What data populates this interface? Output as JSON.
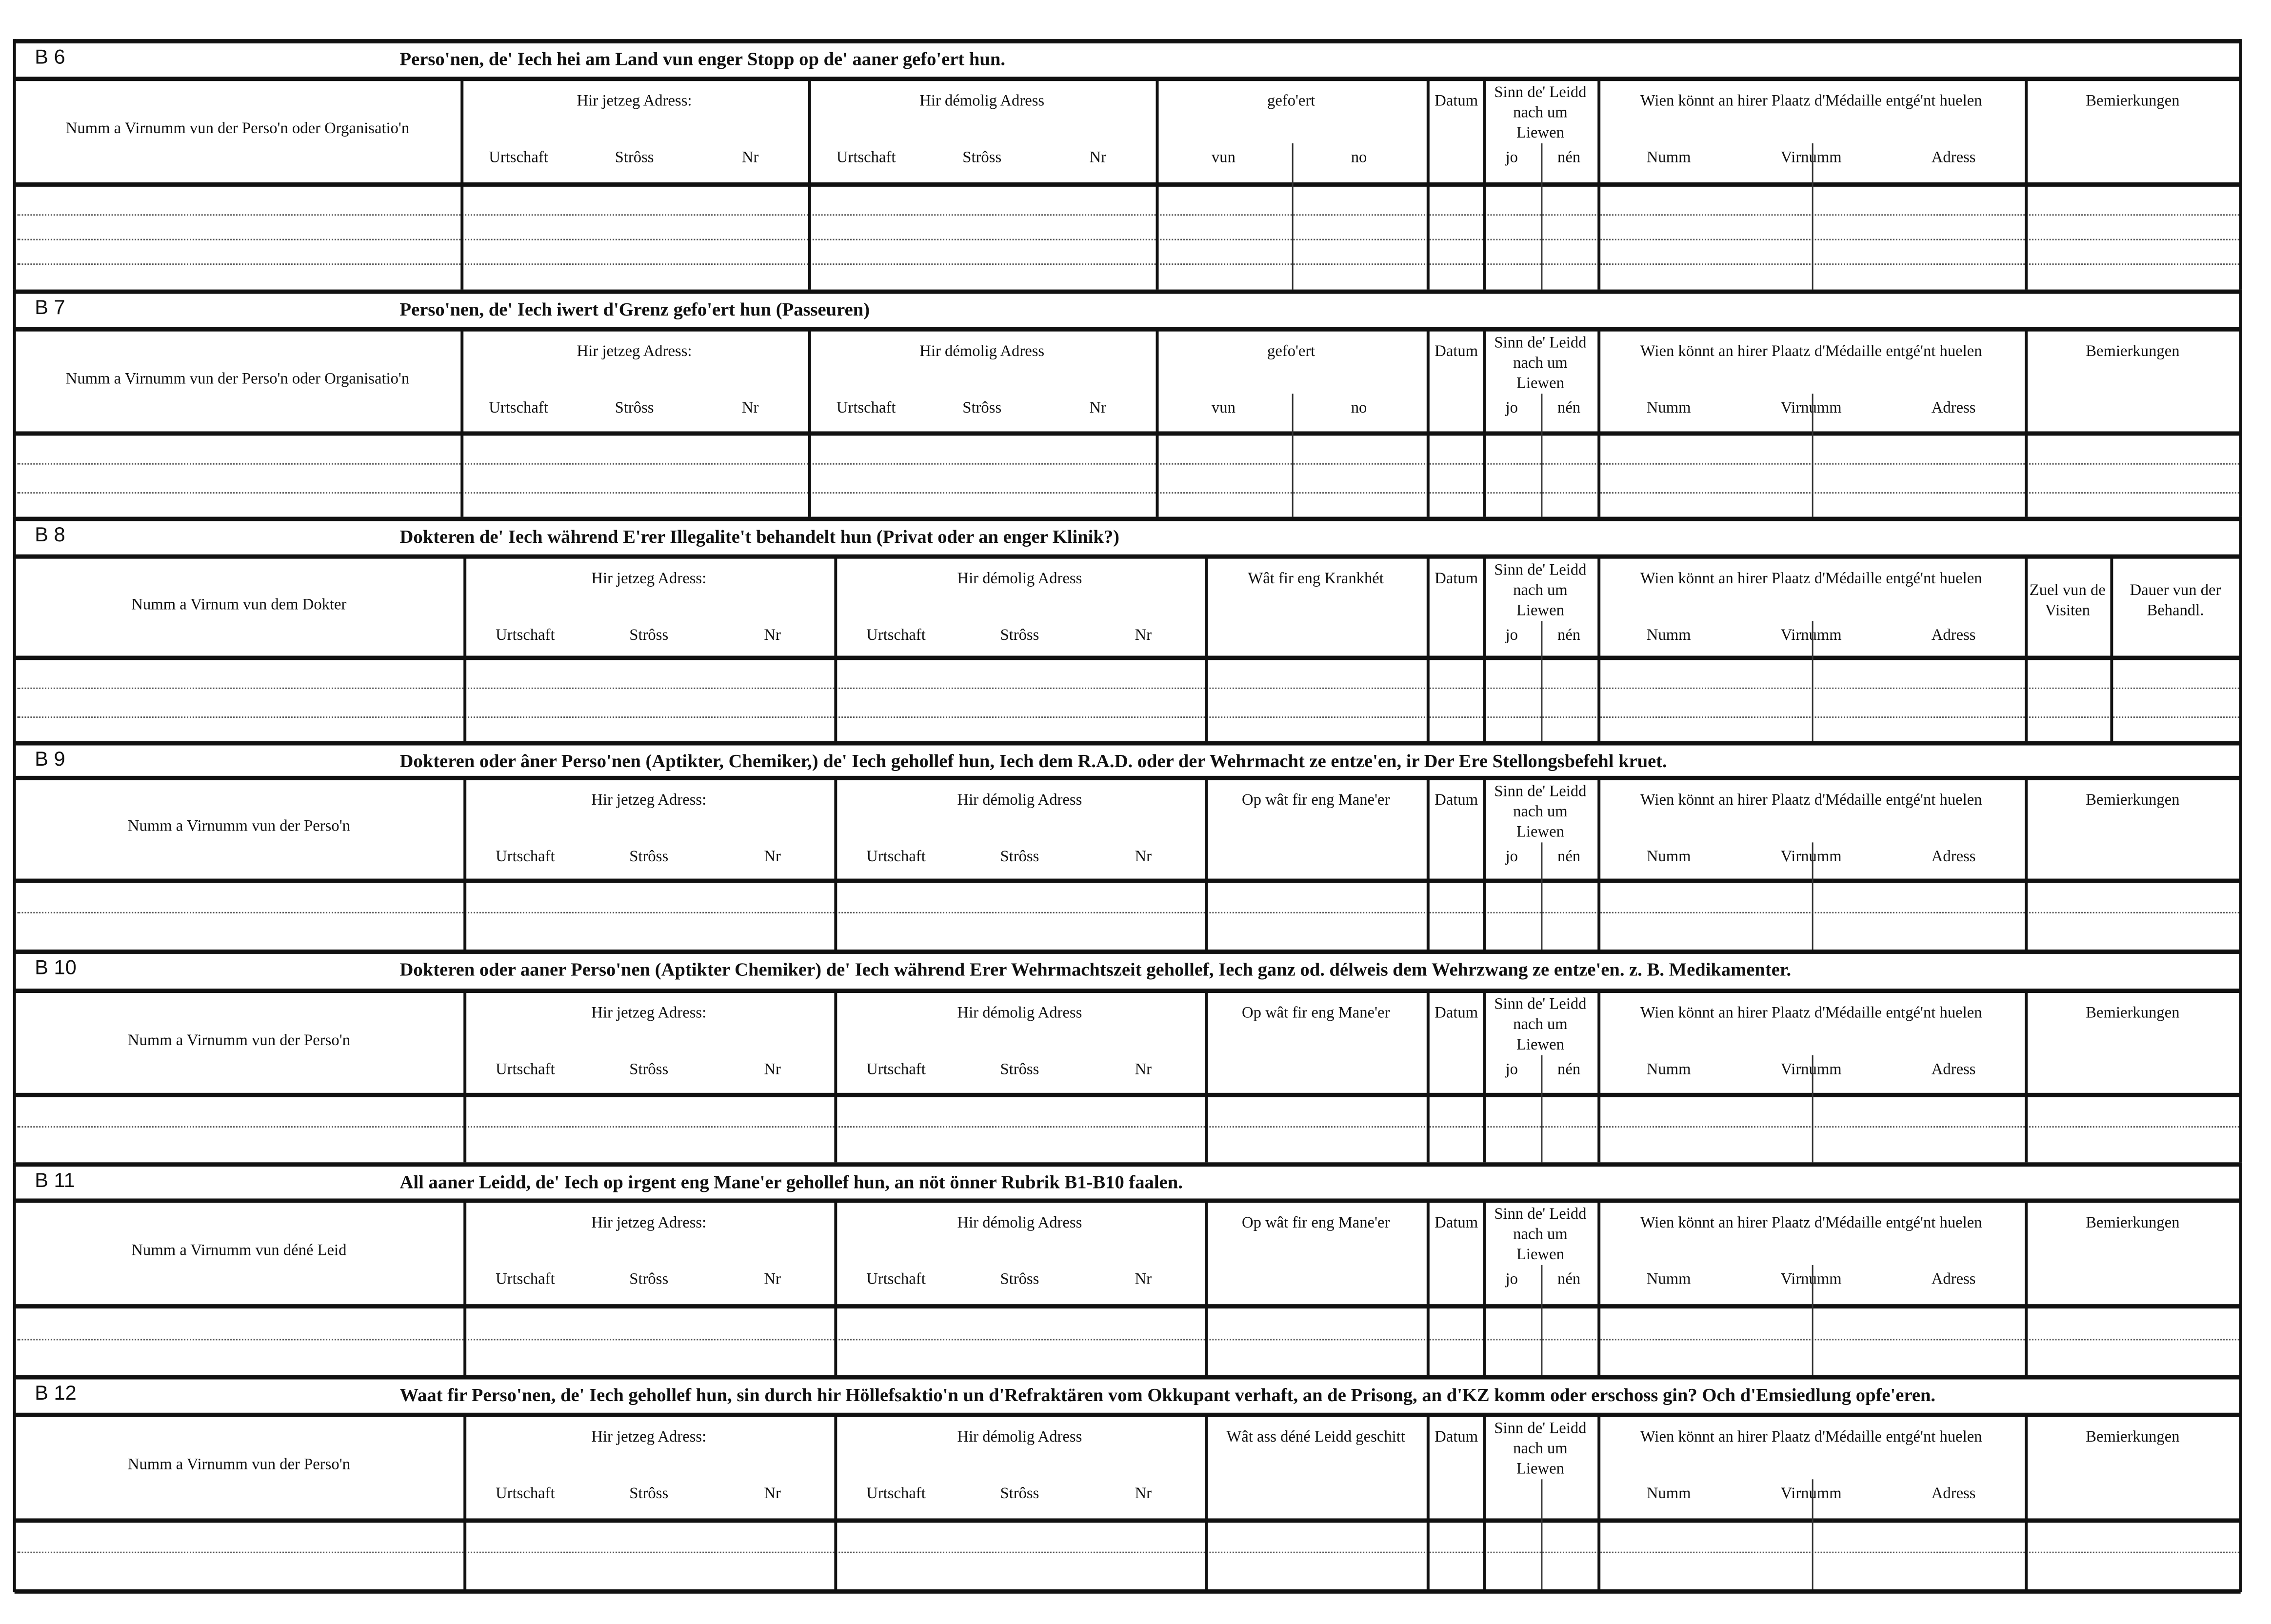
{
  "sections": [
    {
      "code": "B 6",
      "title": "Perso'nen, de' Iech hei am Land vun enger Stopp  op de' aaner gefo'ert hun.",
      "columns": [
        {
          "label": "Numm a Virnumm vun der Perso'n oder Organisatio'n"
        },
        {
          "label": "Hir jetzeg Adress:",
          "sub": [
            "Urtschaft",
            "Strôss",
            "Nr"
          ]
        },
        {
          "label": "Hir démolig Adress",
          "sub": [
            "Urtschaft",
            "Strôss",
            "Nr"
          ]
        },
        {
          "label": "gefo'ert",
          "sub": [
            "vun",
            "no"
          ]
        },
        {
          "label": "Datum"
        },
        {
          "label": "Sinn de' Leidd nach um Liewen",
          "sub": [
            "jo",
            "nén"
          ]
        },
        {
          "label": "Wien könnt an hirer Plaatz d'Médaille entgé'nt huelen",
          "sub": [
            "Numm",
            "Virnumm",
            "Adress"
          ]
        },
        {
          "label": "Bemierkungen"
        }
      ]
    },
    {
      "code": "B 7",
      "title": "Perso'nen, de' Iech iwert d'Grenz gefo'ert hun (Passeuren)",
      "columns": [
        {
          "label": "Numm a Virnumm vun der Perso'n oder Organisatio'n"
        },
        {
          "label": "Hir jetzeg Adress:",
          "sub": [
            "Urtschaft",
            "Strôss",
            "Nr"
          ]
        },
        {
          "label": "Hir démolig Adress",
          "sub": [
            "Urtschaft",
            "Strôss",
            "Nr"
          ]
        },
        {
          "label": "gefo'ert",
          "sub": [
            "vun",
            "no"
          ]
        },
        {
          "label": "Datum"
        },
        {
          "label": "Sinn de' Leidd nach um Liewen",
          "sub": [
            "jo",
            "nén"
          ]
        },
        {
          "label": "Wien könnt an hirer Plaatz d'Médaille entgé'nt huelen",
          "sub": [
            "Numm",
            "Virnumm",
            "Adress"
          ]
        },
        {
          "label": "Bemierkungen"
        }
      ]
    },
    {
      "code": "B 8",
      "title": "Dokteren de' Iech während E'rer Illegalite't behandelt hun (Privat oder an enger Klinik?)",
      "columns": [
        {
          "label": "Numm a Virnum vun dem Dokter"
        },
        {
          "label": "Hir jetzeg Adress:",
          "sub": [
            "Urtschaft",
            "Strôss",
            "Nr"
          ]
        },
        {
          "label": "Hir démolig Adress",
          "sub": [
            "Urtschaft",
            "Strôss",
            "Nr"
          ]
        },
        {
          "label": "Wât fir eng Krankhét"
        },
        {
          "label": "Datum"
        },
        {
          "label": "Sinn de' Leidd nach um Liewen",
          "sub": [
            "jo",
            "nén"
          ]
        },
        {
          "label": "Wien könnt an hirer Plaatz d'Médaille entgé'nt huelen",
          "sub": [
            "Numm",
            "Virnumm",
            "Adress"
          ]
        },
        {
          "label": "Zuel vun de Visiten"
        },
        {
          "label": "Dauer vun der Behandl."
        }
      ]
    },
    {
      "code": "B 9",
      "title": "Dokteren oder âner Perso'nen (Aptikter, Chemiker,) de' Iech gehollef hun, Iech dem R.A.D. oder der Wehrmacht ze entze'en, ir Der Ere Stellongsbefehl kruet.",
      "columns": [
        {
          "label": "Numm a Virnumm vun der Perso'n"
        },
        {
          "label": "Hir jetzeg Adress:",
          "sub": [
            "Urtschaft",
            "Strôss",
            "Nr"
          ]
        },
        {
          "label": "Hir démolig Adress",
          "sub": [
            "Urtschaft",
            "Strôss",
            "Nr"
          ]
        },
        {
          "label": "Op wât fir eng Mane'er"
        },
        {
          "label": "Datum"
        },
        {
          "label": "Sinn de' Leidd nach um Liewen",
          "sub": [
            "jo",
            "nén"
          ]
        },
        {
          "label": "Wien könnt an hirer Plaatz d'Médaille entgé'nt huelen",
          "sub": [
            "Numm",
            "Virnumm",
            "Adress"
          ]
        },
        {
          "label": "Bemierkungen"
        }
      ]
    },
    {
      "code": "B 10",
      "title": "Dokteren oder aaner Perso'nen (Aptikter Chemiker) de' Iech während Erer Wehrmachtszeit gehollef, Iech ganz od. délweis dem Wehrzwang ze entze'en. z. B. Medikamenter.",
      "columns": [
        {
          "label": "Numm a Virnumm vun der Perso'n"
        },
        {
          "label": "Hir jetzeg Adress:",
          "sub": [
            "Urtschaft",
            "Strôss",
            "Nr"
          ]
        },
        {
          "label": "Hir démolig Adress",
          "sub": [
            "Urtschaft",
            "Strôss",
            "Nr"
          ]
        },
        {
          "label": "Op wât fir eng Mane'er"
        },
        {
          "label": "Datum"
        },
        {
          "label": "Sinn de' Leidd nach um Liewen",
          "sub": [
            "jo",
            "nén"
          ]
        },
        {
          "label": "Wien könnt an hirer Plaatz d'Médaille entgé'nt huelen",
          "sub": [
            "Numm",
            "Virnumm",
            "Adress"
          ]
        },
        {
          "label": "Bemierkungen"
        }
      ]
    },
    {
      "code": "B 11",
      "title": "All aaner Leidd, de' Iech op irgent eng Mane'er  gehollef hun, an nöt önner Rubrik B1-B10 faalen.",
      "columns": [
        {
          "label": "Numm a Virnumm vun déné Leid"
        },
        {
          "label": "Hir jetzeg Adress:",
          "sub": [
            "Urtschaft",
            "Strôss",
            "Nr"
          ]
        },
        {
          "label": "Hir démolig Adress",
          "sub": [
            "Urtschaft",
            "Strôss",
            "Nr"
          ]
        },
        {
          "label": "Op wât fir eng Mane'er"
        },
        {
          "label": "Datum"
        },
        {
          "label": "Sinn de' Leidd nach um Liewen",
          "sub": [
            "jo",
            "nén"
          ]
        },
        {
          "label": "Wien könnt an hirer Plaatz d'Médaille entgé'nt huelen",
          "sub": [
            "Numm",
            "Virnumm",
            "Adress"
          ]
        },
        {
          "label": "Bemierkungen"
        }
      ]
    },
    {
      "code": "B 12",
      "title": "Waat fir Perso'nen, de' Iech gehollef hun, sin durch hir Höllefsaktio'n un d'Refraktären vom Okkupant verhaft, an de Prisong, an d'KZ komm oder  erschoss gin? Och d'Emsiedlung opfe'eren.",
      "columns": [
        {
          "label": "Numm a Virnumm vun der Perso'n"
        },
        {
          "label": "Hir jetzeg Adress:",
          "sub": [
            "Urtschaft",
            "Strôss",
            "Nr"
          ]
        },
        {
          "label": "Hir démolig Adress",
          "sub": [
            "Urtschaft",
            "Strôss",
            "Nr"
          ]
        },
        {
          "label": "Wât ass déné Leidd geschitt"
        },
        {
          "label": "Datum"
        },
        {
          "label": "Sinn de' Leidd nach um Liewen"
        },
        {
          "label": "Wien könnt an hirer Plaatz d'Médaille entgé'nt huelen",
          "sub": [
            "Numm",
            "Virnumm",
            "Adress"
          ]
        },
        {
          "label": "Bemierkungen"
        }
      ]
    }
  ]
}
